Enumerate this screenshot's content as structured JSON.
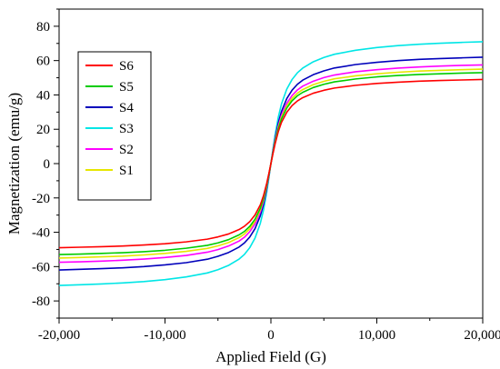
{
  "chart_data": {
    "type": "line",
    "title": "",
    "xlabel": "Applied Field (G)",
    "ylabel": "Magnetization (emu/g)",
    "xlim": [
      -20000,
      20000
    ],
    "ylim": [
      -90,
      90
    ],
    "xticks": [
      -20000,
      -10000,
      0,
      10000,
      20000
    ],
    "xtick_labels": [
      "-20,000",
      "-10,000",
      "0",
      "10,000",
      "20,000"
    ],
    "yticks": [
      -80,
      -60,
      -40,
      -20,
      0,
      20,
      40,
      60,
      80
    ],
    "ytick_labels": [
      "-80",
      "-60",
      "-40",
      "-20",
      "0",
      "20",
      "40",
      "60",
      "80"
    ],
    "grid": false,
    "legend_position": "top-left",
    "series": [
      {
        "name": "S6",
        "color": "#ff0000",
        "Ms": 49.0
      },
      {
        "name": "S5",
        "color": "#00cc00",
        "Ms": 53.0
      },
      {
        "name": "S4",
        "color": "#0000bb",
        "Ms": 62.0
      },
      {
        "name": "S3",
        "color": "#00e6e6",
        "Ms": 71.0
      },
      {
        "name": "S2",
        "color": "#ff00ff",
        "Ms": 57.5
      },
      {
        "name": "S1",
        "color": "#e6e600",
        "Ms": 55.0
      }
    ],
    "x": [
      -20000,
      -18000,
      -16000,
      -14000,
      -12000,
      -10000,
      -8000,
      -6000,
      -5000,
      -4000,
      -3000,
      -2500,
      -2000,
      -1500,
      -1000,
      -700,
      -400,
      -200,
      0,
      200,
      400,
      700,
      1000,
      1500,
      2000,
      2500,
      3000,
      4000,
      5000,
      6000,
      8000,
      10000,
      12000,
      14000,
      16000,
      18000,
      20000
    ],
    "values": {
      "S6": [
        -49.0,
        -48.7,
        -48.4,
        -48.0,
        -47.4,
        -46.7,
        -45.6,
        -44.0,
        -42.7,
        -41.0,
        -38.4,
        -36.5,
        -33.8,
        -29.9,
        -24.0,
        -18.7,
        -11.6,
        -6.0,
        0.0,
        6.0,
        11.6,
        18.7,
        24.0,
        29.9,
        33.8,
        36.5,
        38.4,
        41.0,
        42.7,
        44.0,
        45.6,
        46.7,
        47.4,
        48.0,
        48.4,
        48.7,
        49.0
      ],
      "S5": [
        -53.0,
        -52.7,
        -52.3,
        -51.9,
        -51.3,
        -50.5,
        -49.3,
        -47.6,
        -46.2,
        -44.3,
        -41.5,
        -39.5,
        -36.6,
        -32.4,
        -26.0,
        -20.2,
        -12.5,
        -6.5,
        0.0,
        6.5,
        12.5,
        20.2,
        26.0,
        32.4,
        36.6,
        39.5,
        41.5,
        44.3,
        46.2,
        47.6,
        49.3,
        50.5,
        51.3,
        51.9,
        52.3,
        52.7,
        53.0
      ],
      "S4": [
        -62.0,
        -61.6,
        -61.2,
        -60.7,
        -60.0,
        -59.0,
        -57.7,
        -55.7,
        -54.0,
        -51.8,
        -48.6,
        -46.2,
        -42.8,
        -37.9,
        -30.4,
        -23.7,
        -14.7,
        -7.6,
        0.0,
        7.6,
        14.7,
        23.7,
        30.4,
        37.9,
        42.8,
        46.2,
        48.6,
        51.8,
        54.0,
        55.7,
        57.7,
        59.0,
        60.0,
        60.7,
        61.2,
        61.6,
        62.0
      ],
      "S3": [
        -71.0,
        -70.6,
        -70.1,
        -69.5,
        -68.7,
        -67.6,
        -66.0,
        -63.7,
        -61.8,
        -59.3,
        -55.6,
        -52.9,
        -49.0,
        -43.4,
        -34.8,
        -27.1,
        -16.8,
        -8.7,
        0.0,
        8.7,
        16.8,
        27.1,
        34.8,
        43.4,
        49.0,
        52.9,
        55.6,
        59.3,
        61.8,
        63.7,
        66.0,
        67.6,
        68.7,
        69.5,
        70.1,
        70.6,
        71.0
      ],
      "S2": [
        -57.5,
        -57.2,
        -56.8,
        -56.3,
        -55.6,
        -54.7,
        -53.5,
        -51.6,
        -50.1,
        -48.0,
        -45.1,
        -42.9,
        -39.7,
        -35.1,
        -28.2,
        -21.9,
        -13.6,
        -7.0,
        0.0,
        7.0,
        13.6,
        21.9,
        28.2,
        35.1,
        39.7,
        42.9,
        45.1,
        48.0,
        50.1,
        51.6,
        53.5,
        54.7,
        55.6,
        56.3,
        56.8,
        57.2,
        57.5
      ],
      "S1": [
        -55.0,
        -54.7,
        -54.3,
        -53.9,
        -53.2,
        -52.3,
        -51.1,
        -49.4,
        -47.9,
        -46.0,
        -43.1,
        -41.0,
        -38.0,
        -33.6,
        -27.0,
        -21.0,
        -13.0,
        -6.7,
        0.0,
        6.7,
        13.0,
        21.0,
        27.0,
        33.6,
        38.0,
        41.0,
        43.1,
        46.0,
        47.9,
        49.4,
        51.1,
        52.3,
        53.2,
        53.9,
        54.3,
        54.7,
        55.0
      ]
    }
  }
}
